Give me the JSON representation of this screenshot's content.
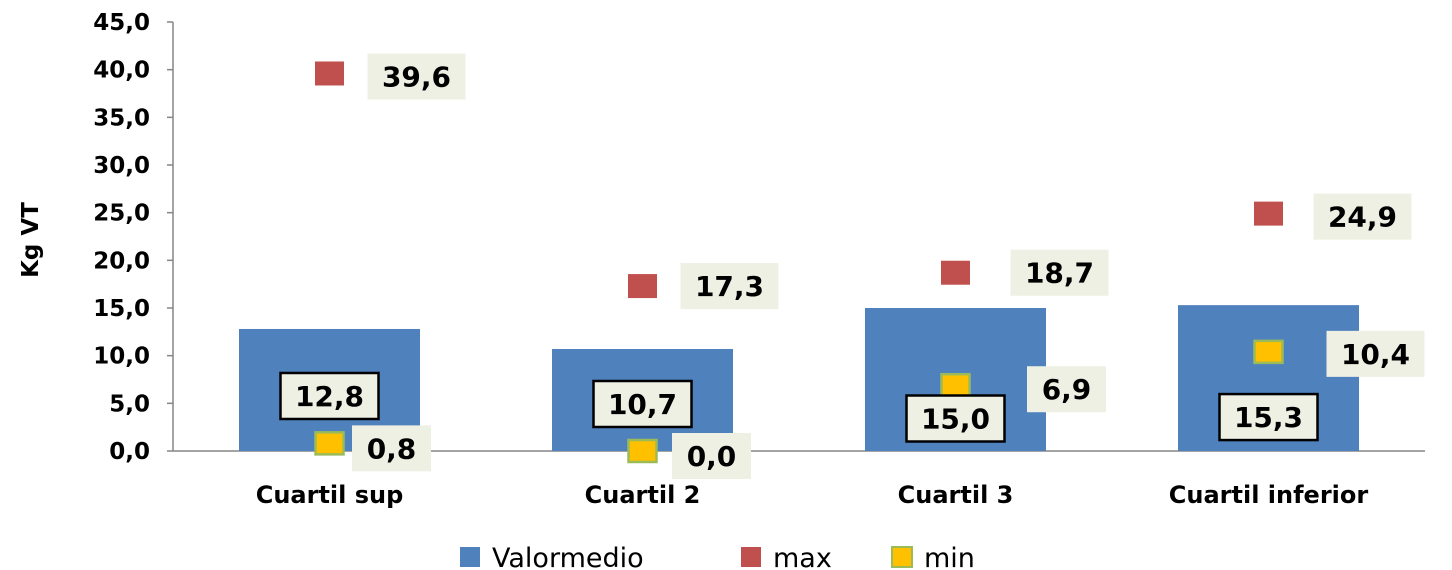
{
  "chart_data": {
    "type": "bar",
    "ylabel": "Kg VT",
    "ylim": [
      0,
      45
    ],
    "yticks": [
      "0,0",
      "5,0",
      "10,0",
      "15,0",
      "20,0",
      "25,0",
      "30,0",
      "35,0",
      "40,0",
      "45,0"
    ],
    "categories": [
      "Cuartil sup",
      "Cuartil 2",
      "Cuartil 3",
      "Cuartil inferior"
    ],
    "series": [
      {
        "name": "Valormedio",
        "kind": "bar",
        "color": "#4F81BD",
        "values": [
          12.8,
          10.7,
          15.0,
          15.3
        ],
        "labels": [
          "12,8",
          "10,7",
          "15,0",
          "15,3"
        ]
      },
      {
        "name": "max",
        "kind": "marker",
        "color": "#C0504D",
        "values": [
          39.6,
          17.3,
          18.7,
          24.9
        ],
        "labels": [
          "39,6",
          "17,3",
          "18,7",
          "24,9"
        ]
      },
      {
        "name": "min",
        "kind": "marker",
        "color": "#FFC000",
        "values": [
          0.8,
          0.0,
          6.9,
          10.4
        ],
        "labels": [
          "0,8",
          "0,0",
          "6,9",
          "10,4"
        ]
      }
    ],
    "legend_position": "bottom",
    "grid": false
  }
}
